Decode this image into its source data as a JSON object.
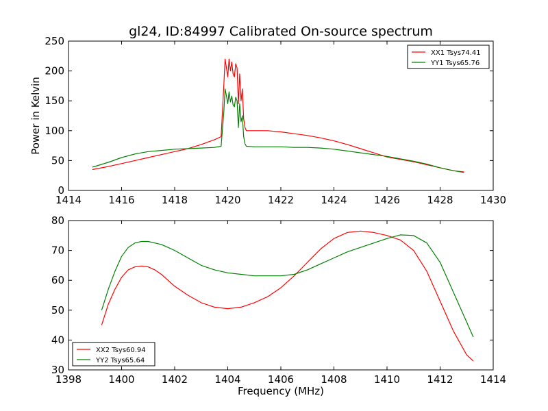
{
  "figure": {
    "title": "gl24, ID:84997 Calibrated On-source spectrum"
  },
  "colors": {
    "red": "#ff0000",
    "green": "#008000",
    "background": "#ffffff",
    "axes": "#000000"
  },
  "chart_data": [
    {
      "type": "line",
      "title": "gl24, ID:84997 Calibrated On-source spectrum",
      "xlabel": "",
      "ylabel": "Power in Kelvin",
      "xlim": [
        1414,
        1430
      ],
      "ylim": [
        0,
        250
      ],
      "xticks": [
        "1414",
        "1416",
        "1418",
        "1420",
        "1422",
        "1424",
        "1426",
        "1428",
        "1430"
      ],
      "yticks": [
        "0",
        "50",
        "100",
        "150",
        "200",
        "250"
      ],
      "grid": false,
      "legend_position": "top-right",
      "series": [
        {
          "name": "XX1 Tsys74.41",
          "color": "#ff0000",
          "x": [
            1414.9,
            1415.5,
            1416.0,
            1416.5,
            1417.0,
            1417.5,
            1418.0,
            1418.5,
            1419.0,
            1419.5,
            1419.75,
            1419.85,
            1419.9,
            1419.95,
            1420.0,
            1420.05,
            1420.1,
            1420.15,
            1420.2,
            1420.25,
            1420.3,
            1420.35,
            1420.4,
            1420.45,
            1420.5,
            1420.55,
            1420.6,
            1420.65,
            1420.7,
            1421.0,
            1421.5,
            1422.0,
            1422.5,
            1423.0,
            1423.5,
            1424.0,
            1424.5,
            1425.0,
            1425.5,
            1426.0,
            1426.5,
            1427.0,
            1427.5,
            1428.0,
            1428.5,
            1428.9
          ],
          "y": [
            35,
            40,
            45,
            50,
            55,
            60,
            65,
            70,
            77,
            85,
            90,
            175,
            220,
            205,
            190,
            220,
            200,
            215,
            195,
            190,
            212,
            205,
            145,
            195,
            150,
            170,
            120,
            105,
            100,
            100,
            100,
            98,
            95,
            92,
            88,
            83,
            77,
            70,
            63,
            56,
            52,
            48,
            43,
            38,
            33,
            31
          ]
        },
        {
          "name": "YY1 Tsys65.76",
          "color": "#008000",
          "x": [
            1414.9,
            1415.5,
            1416.0,
            1416.5,
            1417.0,
            1417.5,
            1418.0,
            1418.5,
            1419.0,
            1419.5,
            1419.75,
            1419.85,
            1419.9,
            1419.95,
            1420.0,
            1420.05,
            1420.1,
            1420.15,
            1420.2,
            1420.25,
            1420.3,
            1420.35,
            1420.4,
            1420.45,
            1420.5,
            1420.55,
            1420.6,
            1420.65,
            1420.7,
            1421.0,
            1421.5,
            1422.0,
            1422.5,
            1423.0,
            1423.5,
            1424.0,
            1424.5,
            1425.0,
            1425.5,
            1426.0,
            1426.5,
            1427.0,
            1427.5,
            1428.0,
            1428.5,
            1428.9
          ],
          "y": [
            39,
            47,
            55,
            61,
            65,
            67,
            69,
            70,
            71,
            72,
            74,
            130,
            170,
            158,
            145,
            165,
            148,
            158,
            143,
            140,
            156,
            150,
            105,
            145,
            115,
            125,
            90,
            78,
            74,
            73,
            73,
            73,
            72,
            72,
            71,
            69,
            66,
            63,
            60,
            57,
            53,
            49,
            44,
            38,
            33,
            30
          ]
        }
      ]
    },
    {
      "type": "line",
      "title": "",
      "xlabel": "Frequency (MHz)",
      "ylabel": "",
      "xlim": [
        1398,
        1414
      ],
      "ylim": [
        30,
        80
      ],
      "xticks": [
        "1398",
        "1400",
        "1402",
        "1404",
        "1406",
        "1408",
        "1410",
        "1412",
        "1414"
      ],
      "yticks": [
        "30",
        "40",
        "50",
        "60",
        "70",
        "80"
      ],
      "grid": false,
      "legend_position": "bottom-left",
      "series": [
        {
          "name": "XX2 Tsys60.94",
          "color": "#ff0000",
          "x": [
            1399.25,
            1399.5,
            1399.75,
            1400.0,
            1400.25,
            1400.5,
            1400.75,
            1401.0,
            1401.25,
            1401.5,
            1401.75,
            1402.0,
            1402.5,
            1403.0,
            1403.5,
            1404.0,
            1404.5,
            1405.0,
            1405.5,
            1406.0,
            1406.5,
            1407.0,
            1407.5,
            1408.0,
            1408.5,
            1409.0,
            1409.5,
            1410.0,
            1410.5,
            1411.0,
            1411.5,
            1412.0,
            1412.5,
            1413.0,
            1413.25
          ],
          "y": [
            45,
            52,
            57,
            61,
            63.5,
            64.5,
            64.8,
            64.5,
            63.5,
            62,
            60,
            58,
            55,
            52.5,
            51,
            50.5,
            51,
            52.5,
            54.5,
            57.5,
            61.5,
            66,
            70.5,
            74,
            76,
            76.5,
            76,
            75,
            73.5,
            70,
            63,
            53,
            43,
            35,
            33
          ]
        },
        {
          "name": "YY2 Tsys65.64",
          "color": "#008000",
          "x": [
            1399.25,
            1399.5,
            1399.75,
            1400.0,
            1400.25,
            1400.5,
            1400.75,
            1401.0,
            1401.25,
            1401.5,
            1401.75,
            1402.0,
            1402.5,
            1403.0,
            1403.5,
            1404.0,
            1404.5,
            1405.0,
            1405.5,
            1406.0,
            1406.5,
            1407.0,
            1407.5,
            1408.0,
            1408.5,
            1409.0,
            1409.5,
            1410.0,
            1410.5,
            1411.0,
            1411.5,
            1412.0,
            1412.5,
            1413.0,
            1413.25
          ],
          "y": [
            50,
            57,
            63,
            68,
            71,
            72.5,
            73,
            73,
            72.5,
            72,
            71,
            70,
            67.5,
            65,
            63.5,
            62.5,
            62,
            61.5,
            61.5,
            61.5,
            62,
            63.5,
            65.5,
            67.5,
            69.5,
            71,
            72.5,
            74,
            75.2,
            75,
            72.5,
            66,
            56,
            46,
            41
          ]
        }
      ]
    }
  ]
}
